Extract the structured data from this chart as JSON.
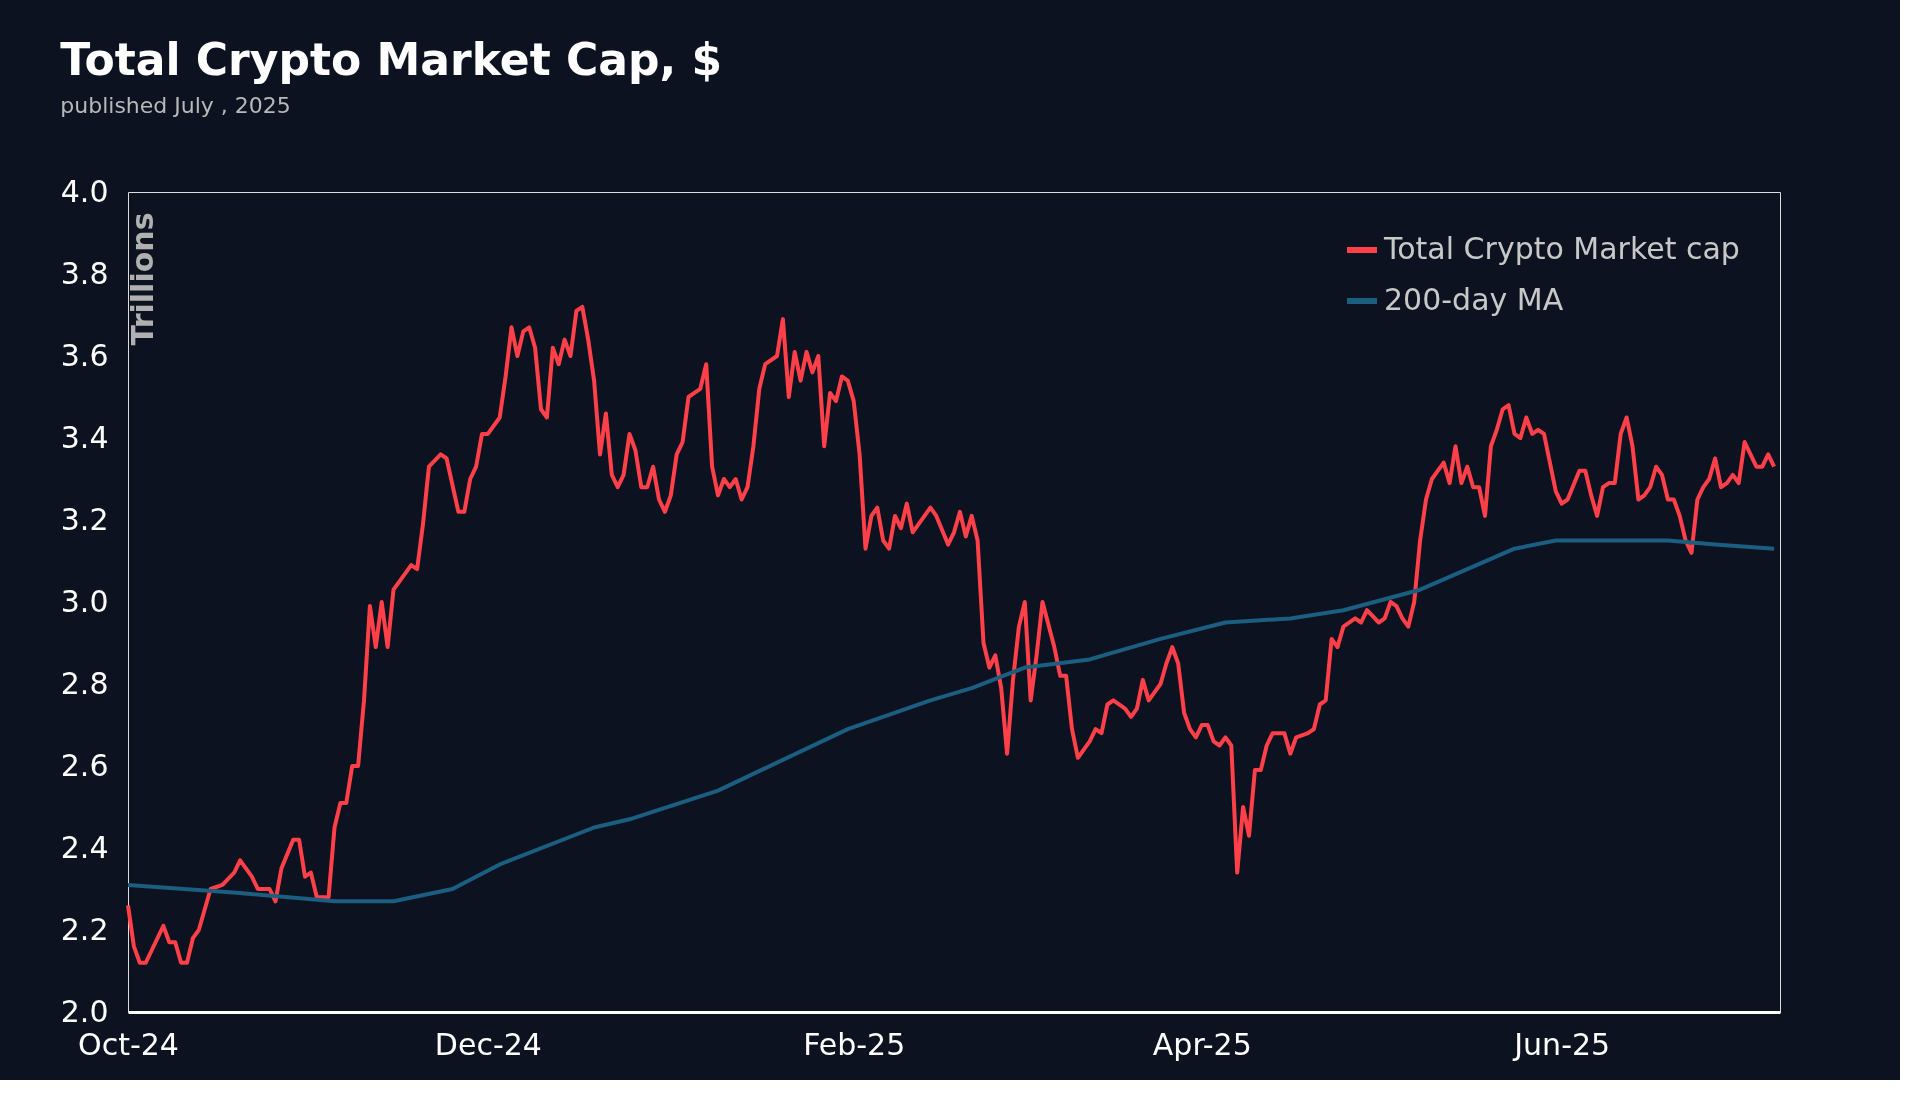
{
  "chart_data": {
    "type": "line",
    "title": "Total Crypto Market Cap, $",
    "subtitle": "published July , 2025",
    "ylabel": "Trillions",
    "xlim": [
      "2024-10-01",
      "2025-07-08"
    ],
    "xticks": [
      {
        "value": "2024-10-01",
        "label": "Oct-24"
      },
      {
        "value": "2024-12-01",
        "label": "Dec-24"
      },
      {
        "value": "2025-02-01",
        "label": "Feb-25"
      },
      {
        "value": "2025-04-01",
        "label": "Apr-25"
      },
      {
        "value": "2025-06-01",
        "label": "Jun-25"
      }
    ],
    "ylim": [
      2.0,
      4.0
    ],
    "yticks": [
      {
        "value": 2,
        "label": "2.0"
      },
      2.2,
      2.4,
      2.6,
      2.8,
      {
        "value": 3,
        "label": "3.0"
      },
      3.2,
      3.4,
      3.6,
      3.8,
      {
        "value": 4,
        "label": "4.0"
      }
    ],
    "grid": false,
    "legend": "top right",
    "line_style": "solid",
    "marker": "none",
    "series": [
      {
        "name": "Total Crypto Market cap",
        "color": "#ff4049",
        "x": [
          "2024-10-01",
          "2024-10-02",
          "2024-10-03",
          "2024-10-04",
          "2024-10-05",
          "2024-10-07",
          "2024-10-08",
          "2024-10-09",
          "2024-10-10",
          "2024-10-11",
          "2024-10-12",
          "2024-10-13",
          "2024-10-15",
          "2024-10-17",
          "2024-10-19",
          "2024-10-20",
          "2024-10-22",
          "2024-10-23",
          "2024-10-25",
          "2024-10-26",
          "2024-10-27",
          "2024-10-29",
          "2024-10-30",
          "2024-10-31",
          "2024-11-01",
          "2024-11-02",
          "2024-11-04",
          "2024-11-05",
          "2024-11-06",
          "2024-11-07",
          "2024-11-08",
          "2024-11-09",
          "2024-11-10",
          "2024-11-11",
          "2024-11-12",
          "2024-11-13",
          "2024-11-14",
          "2024-11-15",
          "2024-11-17",
          "2024-11-18",
          "2024-11-19",
          "2024-11-20",
          "2024-11-21",
          "2024-11-23",
          "2024-11-24",
          "2024-11-26",
          "2024-11-27",
          "2024-11-28",
          "2024-11-29",
          "2024-11-30",
          "2024-12-01",
          "2024-12-03",
          "2024-12-04",
          "2024-12-05",
          "2024-12-06",
          "2024-12-07",
          "2024-12-08",
          "2024-12-09",
          "2024-12-10",
          "2024-12-11",
          "2024-12-12",
          "2024-12-13",
          "2024-12-14",
          "2024-12-15",
          "2024-12-16",
          "2024-12-17",
          "2024-12-18",
          "2024-12-19",
          "2024-12-20",
          "2024-12-21",
          "2024-12-22",
          "2024-12-23",
          "2024-12-24",
          "2024-12-25",
          "2024-12-26",
          "2024-12-27",
          "2024-12-28",
          "2024-12-29",
          "2024-12-30",
          "2024-12-31",
          "2025-01-01",
          "2025-01-02",
          "2025-01-03",
          "2025-01-04",
          "2025-01-05",
          "2025-01-06",
          "2025-01-07",
          "2025-01-08",
          "2025-01-09",
          "2025-01-10",
          "2025-01-11",
          "2025-01-12",
          "2025-01-13",
          "2025-01-14",
          "2025-01-15",
          "2025-01-16",
          "2025-01-17",
          "2025-01-19",
          "2025-01-20",
          "2025-01-21",
          "2025-01-22",
          "2025-01-23",
          "2025-01-24",
          "2025-01-25",
          "2025-01-26",
          "2025-01-27",
          "2025-01-28",
          "2025-01-29",
          "2025-01-30",
          "2025-01-31",
          "2025-02-01",
          "2025-02-02",
          "2025-02-03",
          "2025-02-04",
          "2025-02-05",
          "2025-02-06",
          "2025-02-07",
          "2025-02-08",
          "2025-02-09",
          "2025-02-10",
          "2025-02-11",
          "2025-02-13",
          "2025-02-14",
          "2025-02-15",
          "2025-02-17",
          "2025-02-18",
          "2025-02-19",
          "2025-02-20",
          "2025-02-21",
          "2025-02-22",
          "2025-02-23",
          "2025-02-24",
          "2025-02-25",
          "2025-02-26",
          "2025-02-27",
          "2025-02-28",
          "2025-03-01",
          "2025-03-02",
          "2025-03-03",
          "2025-03-04",
          "2025-03-05",
          "2025-03-07",
          "2025-03-08",
          "2025-03-09",
          "2025-03-10",
          "2025-03-11",
          "2025-03-13",
          "2025-03-14",
          "2025-03-15",
          "2025-03-16",
          "2025-03-17",
          "2025-03-19",
          "2025-03-20",
          "2025-03-21",
          "2025-03-22",
          "2025-03-23",
          "2025-03-24",
          "2025-03-25",
          "2025-03-26",
          "2025-03-27",
          "2025-03-28",
          "2025-03-29",
          "2025-03-30",
          "2025-03-31",
          "2025-04-01",
          "2025-04-02",
          "2025-04-03",
          "2025-04-04",
          "2025-04-05",
          "2025-04-06",
          "2025-04-07",
          "2025-04-08",
          "2025-04-09",
          "2025-04-10",
          "2025-04-11",
          "2025-04-12",
          "2025-04-13",
          "2025-04-14",
          "2025-04-15",
          "2025-04-16",
          "2025-04-17",
          "2025-04-19",
          "2025-04-20",
          "2025-04-21",
          "2025-04-22",
          "2025-04-23",
          "2025-04-24",
          "2025-04-25",
          "2025-04-27",
          "2025-04-28",
          "2025-04-29",
          "2025-05-01",
          "2025-05-02",
          "2025-05-03",
          "2025-05-04",
          "2025-05-05",
          "2025-05-06",
          "2025-05-07",
          "2025-05-08",
          "2025-05-09",
          "2025-05-10",
          "2025-05-12",
          "2025-05-13",
          "2025-05-14",
          "2025-05-15",
          "2025-05-16",
          "2025-05-17",
          "2025-05-18",
          "2025-05-19",
          "2025-05-20",
          "2025-05-21",
          "2025-05-22",
          "2025-05-23",
          "2025-05-24",
          "2025-05-25",
          "2025-05-26",
          "2025-05-27",
          "2025-05-28",
          "2025-05-29",
          "2025-05-31",
          "2025-06-01",
          "2025-06-02",
          "2025-06-04",
          "2025-06-05",
          "2025-06-06",
          "2025-06-07",
          "2025-06-08",
          "2025-06-09",
          "2025-06-10",
          "2025-06-11",
          "2025-06-12",
          "2025-06-13",
          "2025-06-14",
          "2025-06-15",
          "2025-06-16",
          "2025-06-17",
          "2025-06-18",
          "2025-06-19",
          "2025-06-20",
          "2025-06-21",
          "2025-06-22",
          "2025-06-23",
          "2025-06-24",
          "2025-06-25",
          "2025-06-26",
          "2025-06-27",
          "2025-06-28",
          "2025-06-29",
          "2025-06-30",
          "2025-07-01",
          "2025-07-02",
          "2025-07-03",
          "2025-07-04",
          "2025-07-05",
          "2025-07-06",
          "2025-07-07"
        ],
        "values": [
          2.26,
          2.16,
          2.12,
          2.12,
          2.15,
          2.21,
          2.17,
          2.17,
          2.12,
          2.12,
          2.18,
          2.2,
          2.3,
          2.31,
          2.34,
          2.37,
          2.33,
          2.3,
          2.3,
          2.27,
          2.35,
          2.42,
          2.42,
          2.33,
          2.34,
          2.28,
          2.28,
          2.45,
          2.51,
          2.51,
          2.6,
          2.6,
          2.76,
          2.99,
          2.89,
          3.0,
          2.89,
          3.03,
          3.07,
          3.09,
          3.08,
          3.19,
          3.33,
          3.36,
          3.35,
          3.22,
          3.22,
          3.3,
          3.33,
          3.41,
          3.41,
          3.45,
          3.55,
          3.67,
          3.6,
          3.66,
          3.67,
          3.62,
          3.47,
          3.45,
          3.62,
          3.58,
          3.64,
          3.6,
          3.71,
          3.72,
          3.64,
          3.54,
          3.36,
          3.46,
          3.31,
          3.28,
          3.31,
          3.41,
          3.37,
          3.28,
          3.28,
          3.33,
          3.25,
          3.22,
          3.26,
          3.36,
          3.39,
          3.5,
          3.51,
          3.52,
          3.58,
          3.33,
          3.26,
          3.3,
          3.28,
          3.3,
          3.25,
          3.28,
          3.38,
          3.52,
          3.58,
          3.6,
          3.69,
          3.5,
          3.61,
          3.54,
          3.61,
          3.56,
          3.6,
          3.38,
          3.51,
          3.49,
          3.55,
          3.54,
          3.49,
          3.36,
          3.13,
          3.21,
          3.23,
          3.15,
          3.13,
          3.21,
          3.18,
          3.24,
          3.17,
          3.21,
          3.23,
          3.21,
          3.14,
          3.17,
          3.22,
          3.16,
          3.21,
          3.15,
          2.9,
          2.84,
          2.87,
          2.79,
          2.63,
          2.81,
          2.94,
          3.0,
          2.76,
          2.87,
          3.0,
          2.89,
          2.82,
          2.82,
          2.69,
          2.62,
          2.66,
          2.69,
          2.68,
          2.75,
          2.76,
          2.74,
          2.72,
          2.74,
          2.81,
          2.76,
          2.78,
          2.8,
          2.85,
          2.89,
          2.85,
          2.73,
          2.69,
          2.67,
          2.7,
          2.7,
          2.66,
          2.65,
          2.67,
          2.65,
          2.34,
          2.5,
          2.43,
          2.59,
          2.59,
          2.65,
          2.68,
          2.68,
          2.68,
          2.63,
          2.67,
          2.68,
          2.69,
          2.75,
          2.76,
          2.91,
          2.89,
          2.94,
          2.96,
          2.95,
          2.98,
          2.95,
          2.96,
          3.0,
          2.99,
          2.96,
          2.94,
          3.0,
          3.15,
          3.25,
          3.3,
          3.34,
          3.29,
          3.38,
          3.29,
          3.33,
          3.28,
          3.28,
          3.21,
          3.38,
          3.42,
          3.47,
          3.48,
          3.41,
          3.4,
          3.45,
          3.41,
          3.42,
          3.41,
          3.27,
          3.24,
          3.25,
          3.32,
          3.32,
          3.26,
          3.21,
          3.28,
          3.29,
          3.29,
          3.41,
          3.45,
          3.38,
          3.25,
          3.26,
          3.28,
          3.33,
          3.31,
          3.25,
          3.25,
          3.21,
          3.15,
          3.12,
          3.25,
          3.28,
          3.3,
          3.35,
          3.28,
          3.29,
          3.31,
          3.29,
          3.39,
          3.36,
          3.33,
          3.33,
          3.36,
          3.33
        ]
      },
      {
        "name": "200-day MA",
        "color": "#1b5e80",
        "x": [
          "2024-10-01",
          "2024-10-20",
          "2024-11-05",
          "2024-11-15",
          "2024-11-25",
          "2024-12-03",
          "2024-12-19",
          "2024-12-25",
          "2025-01-09",
          "2025-01-31",
          "2025-02-14",
          "2025-02-21",
          "2025-03-02",
          "2025-03-13",
          "2025-03-25",
          "2025-04-05",
          "2025-04-16",
          "2025-04-25",
          "2025-05-08",
          "2025-05-16",
          "2025-05-24",
          "2025-05-31",
          "2025-06-19",
          "2025-06-27",
          "2025-07-07"
        ],
        "values": [
          2.31,
          2.29,
          2.27,
          2.27,
          2.3,
          2.36,
          2.45,
          2.47,
          2.54,
          2.69,
          2.76,
          2.79,
          2.84,
          2.86,
          2.91,
          2.95,
          2.96,
          2.98,
          3.03,
          3.08,
          3.13,
          3.15,
          3.15,
          3.14,
          3.13
        ]
      }
    ]
  }
}
